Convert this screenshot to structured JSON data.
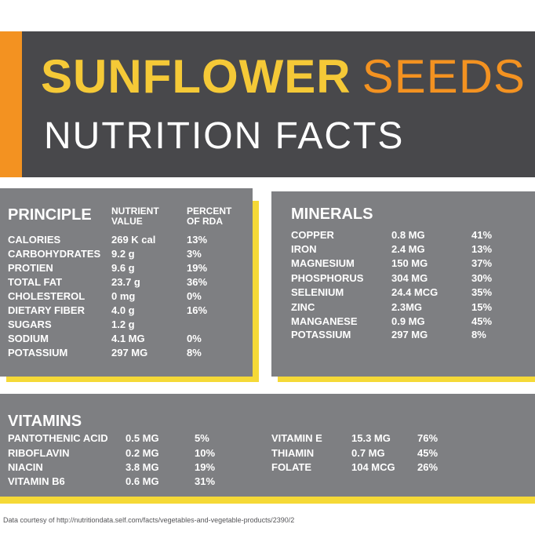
{
  "header": {
    "title_bold": "SUNFLOWER",
    "title_light": "SEEDS",
    "subtitle": "NUTRITION FACTS"
  },
  "colors": {
    "header_bg": "#48484b",
    "accent_orange": "#f39221",
    "accent_yellow": "#f5c937",
    "panel_bg": "#7e7f82",
    "shadow_yellow": "#f5d937"
  },
  "principle": {
    "title": "PRINCIPLE",
    "col_value_line1": "NUTRIENT",
    "col_value_line2": "VALUE",
    "col_rda_line1": "PERCENT",
    "col_rda_line2": "OF RDA",
    "rows": [
      {
        "name": "CALORIES",
        "value": "269 K cal",
        "rda": "13%"
      },
      {
        "name": "CARBOHYDRATES",
        "value": "9.2 g",
        "rda": "3%"
      },
      {
        "name": "PROTIEN",
        "value": "9.6 g",
        "rda": "19%"
      },
      {
        "name": "TOTAL FAT",
        "value": "23.7 g",
        "rda": "36%"
      },
      {
        "name": "CHOLESTEROL",
        "value": "0 mg",
        "rda": "0%"
      },
      {
        "name": "DIETARY FIBER",
        "value": "4.0 g",
        "rda": "16%"
      },
      {
        "name": "SUGARS",
        "value": "1.2 g",
        "rda": ""
      },
      {
        "name": "SODIUM",
        "value": "4.1 MG",
        "rda": "0%"
      },
      {
        "name": "POTASSIUM",
        "value": "297 MG",
        "rda": "8%"
      }
    ]
  },
  "minerals": {
    "title": "MINERALS",
    "rows": [
      {
        "name": "COPPER",
        "value": "0.8 MG",
        "rda": "41%"
      },
      {
        "name": "IRON",
        "value": "2.4 MG",
        "rda": "13%"
      },
      {
        "name": "MAGNESIUM",
        "value": "150 MG",
        "rda": "37%"
      },
      {
        "name": "PHOSPHORUS",
        "value": "304 MG",
        "rda": "30%"
      },
      {
        "name": "SELENIUM",
        "value": "24.4 MCG",
        "rda": "35%"
      },
      {
        "name": "ZINC",
        "value": "2.3MG",
        "rda": "15%"
      },
      {
        "name": "MANGANESE",
        "value": "0.9 MG",
        "rda": "45%"
      },
      {
        "name": "POTASSIUM",
        "value": "297 MG",
        "rda": "8%"
      }
    ]
  },
  "vitamins": {
    "title": "VITAMINS",
    "left_rows": [
      {
        "name": "PANTOTHENIC ACID",
        "value": "0.5 MG",
        "rda": "5%"
      },
      {
        "name": "RIBOFLAVIN",
        "value": "0.2 MG",
        "rda": "10%"
      },
      {
        "name": "NIACIN",
        "value": "3.8 MG",
        "rda": "19%"
      },
      {
        "name": "VITAMIN B6",
        "value": "0.6 MG",
        "rda": "31%"
      }
    ],
    "right_rows": [
      {
        "name": "VITAMIN E",
        "value": "15.3 MG",
        "rda": "76%"
      },
      {
        "name": "THIAMIN",
        "value": "0.7 MG",
        "rda": "45%"
      },
      {
        "name": "FOLATE",
        "value": "104 MCG",
        "rda": "26%"
      }
    ]
  },
  "credit": "Data courtesy of http://nutritiondata.self.com/facts/vegetables-and-vegetable-products/2390/2"
}
